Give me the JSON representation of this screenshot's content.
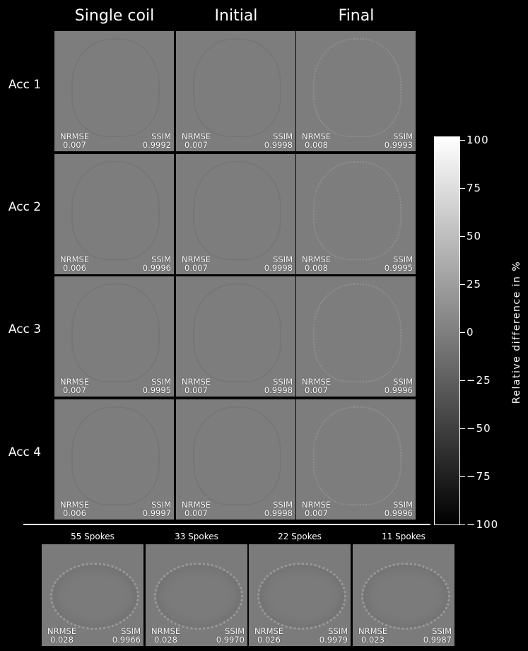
{
  "columns": [
    "Single coil",
    "Initial",
    "Final"
  ],
  "rows": [
    {
      "label": "Acc 1",
      "cells": [
        {
          "nrmse": "0.007",
          "ssim": "0.9992"
        },
        {
          "nrmse": "0.007",
          "ssim": "0.9998"
        },
        {
          "nrmse": "0.008",
          "ssim": "0.9993"
        }
      ]
    },
    {
      "label": "Acc 2",
      "cells": [
        {
          "nrmse": "0.006",
          "ssim": "0.9996"
        },
        {
          "nrmse": "0.007",
          "ssim": "0.9998"
        },
        {
          "nrmse": "0.008",
          "ssim": "0.9995"
        }
      ]
    },
    {
      "label": "Acc 3",
      "cells": [
        {
          "nrmse": "0.007",
          "ssim": "0.9995"
        },
        {
          "nrmse": "0.007",
          "ssim": "0.9998"
        },
        {
          "nrmse": "0.007",
          "ssim": "0.9996"
        }
      ]
    },
    {
      "label": "Acc 4",
      "cells": [
        {
          "nrmse": "0.006",
          "ssim": "0.9997"
        },
        {
          "nrmse": "0.007",
          "ssim": "0.9998"
        },
        {
          "nrmse": "0.007",
          "ssim": "0.9996"
        }
      ]
    }
  ],
  "metric_labels": {
    "nrmse": "NRMSE",
    "ssim": "SSIM"
  },
  "spokes": [
    {
      "label": "55 Spokes",
      "nrmse": "0.028",
      "ssim": "0.9966"
    },
    {
      "label": "33 Spokes",
      "nrmse": "0.028",
      "ssim": "0.9970"
    },
    {
      "label": "22 Spokes",
      "nrmse": "0.026",
      "ssim": "0.9979"
    },
    {
      "label": "11 Spokes",
      "nrmse": "0.023",
      "ssim": "0.9987"
    }
  ],
  "colorbar": {
    "label": "Relative difference in %",
    "ticks": [
      "100",
      "75",
      "50",
      "25",
      "0",
      "−25",
      "−50",
      "−75",
      "−100"
    ],
    "range": [
      -100,
      100
    ],
    "colormap": "grayscale"
  }
}
